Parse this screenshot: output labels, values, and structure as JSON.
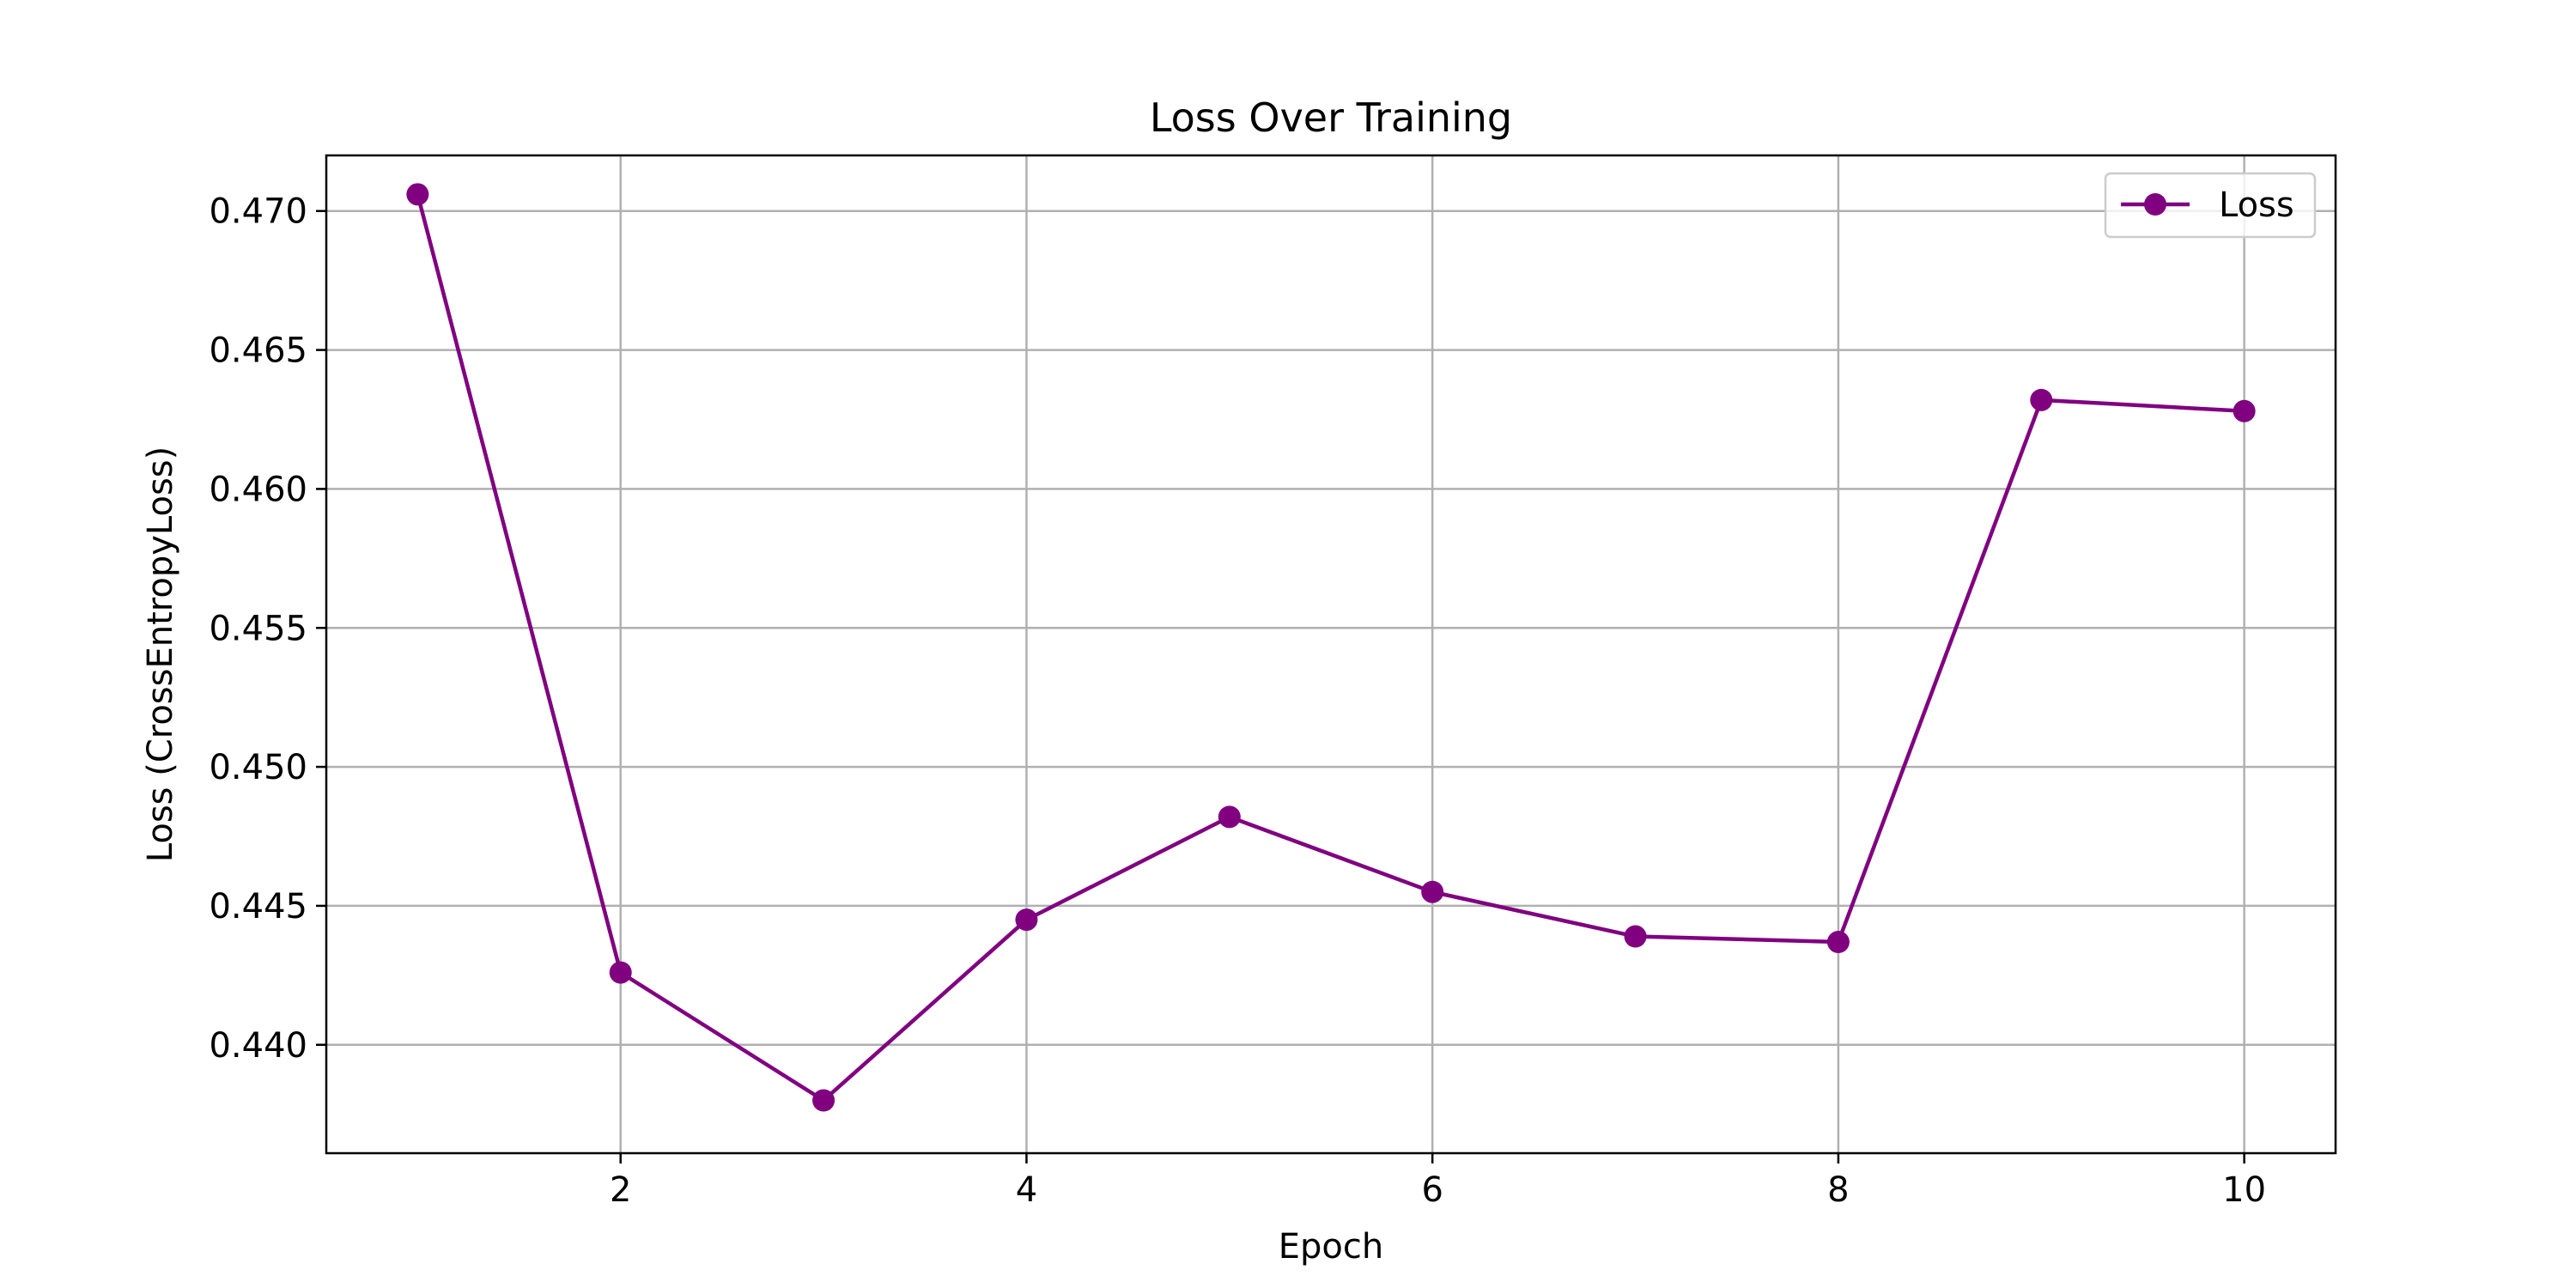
{
  "chart_data": {
    "type": "line",
    "title": "Loss Over Training",
    "xlabel": "Epoch",
    "ylabel": "Loss (CrossEntropyLoss)",
    "xlim": [
      0.55,
      10.45
    ],
    "ylim": [
      0.4361,
      0.472
    ],
    "xticks": [
      2,
      4,
      6,
      8,
      10
    ],
    "yticks": [
      0.44,
      0.445,
      0.45,
      0.455,
      0.46,
      0.465,
      0.47
    ],
    "ytick_labels": [
      "0.440",
      "0.445",
      "0.450",
      "0.455",
      "0.460",
      "0.465",
      "0.470"
    ],
    "grid": true,
    "legend_position": "top-right",
    "series": [
      {
        "name": "Loss",
        "color": "#800080",
        "marker": "circle",
        "x": [
          1,
          2,
          3,
          4,
          5,
          6,
          7,
          8,
          9,
          10
        ],
        "y": [
          0.4706,
          0.4426,
          0.438,
          0.4445,
          0.4482,
          0.4455,
          0.4439,
          0.4437,
          0.4632,
          0.4628
        ]
      }
    ]
  }
}
